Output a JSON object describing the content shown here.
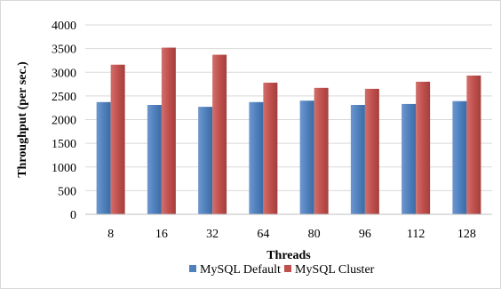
{
  "chart_data": {
    "type": "bar",
    "title": "",
    "xlabel": "Threads",
    "ylabel": "Throughput  (per sec.)",
    "categories": [
      "8",
      "16",
      "32",
      "64",
      "80",
      "96",
      "112",
      "128"
    ],
    "series": [
      {
        "name": "MySQL Default",
        "color": "#4f81bd",
        "values": [
          2370,
          2310,
          2270,
          2370,
          2400,
          2310,
          2330,
          2390
        ]
      },
      {
        "name": "MySQL Cluster",
        "color": "#c0504d",
        "values": [
          3160,
          3520,
          3370,
          2780,
          2670,
          2650,
          2800,
          2930
        ]
      }
    ],
    "ylim": [
      0,
      4000
    ],
    "yticks": [
      "0",
      "500",
      "1000",
      "1500",
      "2000",
      "2500",
      "3000",
      "3500",
      "4000"
    ],
    "grid": true,
    "legend_position": "bottom"
  }
}
